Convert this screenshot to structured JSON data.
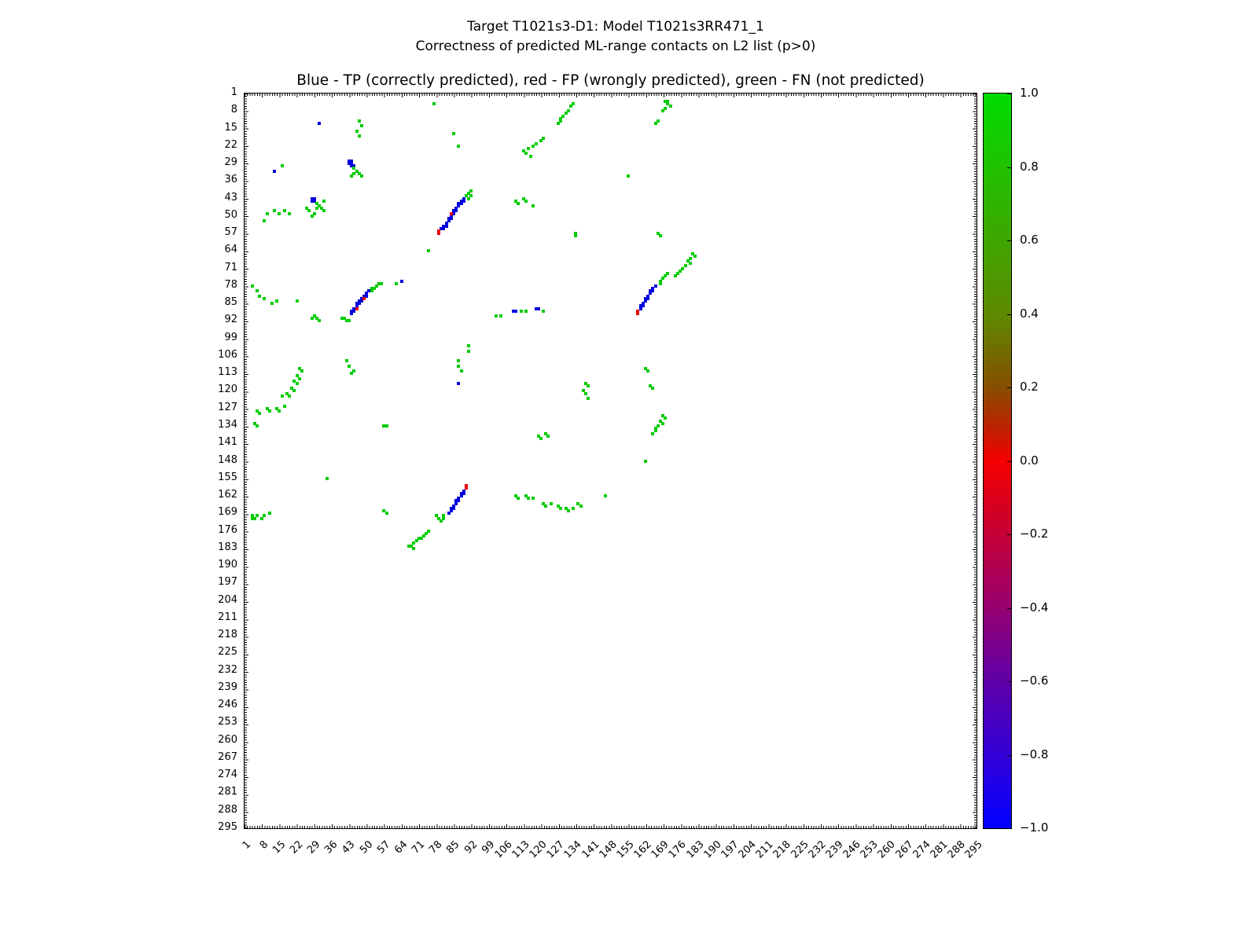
{
  "chart_data": {
    "type": "scatter",
    "title": "Target T1021s3-D1: Model T1021s3RR471_1",
    "subtitle": "Correctness of predicted ML-range contacts on L2 list (p>0)",
    "axes_title": "Blue - TP (correctly predicted), red - FP (wrongly predicted), green - FN (not predicted)",
    "xlabel": "",
    "ylabel": "",
    "xlim": [
      1,
      295
    ],
    "ylim": [
      1,
      295
    ],
    "y_inverted": true,
    "grid": false,
    "tick_values": [
      1,
      8,
      15,
      22,
      29,
      36,
      43,
      50,
      57,
      64,
      71,
      78,
      85,
      92,
      99,
      106,
      113,
      120,
      127,
      134,
      141,
      148,
      155,
      162,
      169,
      176,
      183,
      190,
      197,
      204,
      211,
      218,
      225,
      232,
      239,
      246,
      253,
      260,
      267,
      274,
      281,
      288,
      295
    ],
    "series": [
      {
        "id": "tp",
        "name": "TP (correctly predicted)",
        "color": "#0000dd",
        "points": [
          [
            31,
            13
          ],
          [
            13,
            32
          ],
          [
            43,
            28
          ],
          [
            44,
            28
          ],
          [
            43,
            29
          ],
          [
            44,
            29
          ],
          [
            44,
            30
          ],
          [
            45,
            30
          ],
          [
            45,
            31
          ],
          [
            28,
            43
          ],
          [
            29,
            43
          ],
          [
            28,
            44
          ],
          [
            29,
            44
          ],
          [
            80,
            55
          ],
          [
            81,
            55
          ],
          [
            81,
            54
          ],
          [
            82,
            54
          ],
          [
            82,
            53
          ],
          [
            83,
            52
          ],
          [
            83,
            51
          ],
          [
            84,
            51
          ],
          [
            84,
            50
          ],
          [
            85,
            49
          ],
          [
            85,
            48
          ],
          [
            86,
            48
          ],
          [
            86,
            47
          ],
          [
            87,
            46
          ],
          [
            87,
            45
          ],
          [
            88,
            45
          ],
          [
            88,
            44
          ],
          [
            89,
            44
          ],
          [
            89,
            43
          ],
          [
            44,
            89
          ],
          [
            44,
            88
          ],
          [
            45,
            88
          ],
          [
            45,
            87
          ],
          [
            46,
            86
          ],
          [
            46,
            85
          ],
          [
            47,
            85
          ],
          [
            47,
            84
          ],
          [
            48,
            84
          ],
          [
            48,
            83
          ],
          [
            49,
            82
          ],
          [
            50,
            82
          ],
          [
            50,
            81
          ],
          [
            51,
            80
          ],
          [
            64,
            76
          ],
          [
            109,
            88
          ],
          [
            110,
            88
          ],
          [
            118,
            87
          ],
          [
            119,
            87
          ],
          [
            87,
            117
          ],
          [
            160,
            87
          ],
          [
            160,
            86
          ],
          [
            161,
            86
          ],
          [
            161,
            85
          ],
          [
            162,
            84
          ],
          [
            162,
            83
          ],
          [
            163,
            83
          ],
          [
            163,
            82
          ],
          [
            164,
            81
          ],
          [
            164,
            80
          ],
          [
            165,
            80
          ],
          [
            165,
            79
          ],
          [
            166,
            78
          ],
          [
            89,
            160
          ],
          [
            89,
            161
          ],
          [
            88,
            161
          ],
          [
            88,
            162
          ],
          [
            87,
            163
          ],
          [
            87,
            164
          ],
          [
            86,
            164
          ],
          [
            86,
            165
          ],
          [
            85,
            166
          ],
          [
            85,
            167
          ],
          [
            84,
            167
          ],
          [
            84,
            168
          ],
          [
            83,
            169
          ]
        ]
      },
      {
        "id": "fp",
        "name": "FP (wrongly predicted)",
        "color": "#ee0000",
        "points": [
          [
            79,
            57
          ],
          [
            79,
            56
          ],
          [
            84,
            49
          ],
          [
            46,
            87
          ],
          [
            49,
            83
          ],
          [
            159,
            89
          ],
          [
            159,
            88
          ],
          [
            90,
            158
          ],
          [
            90,
            159
          ]
        ]
      },
      {
        "id": "fn",
        "name": "FN (not predicted)",
        "color": "#00cc00",
        "points": [
          [
            77,
            5
          ],
          [
            170,
            4
          ],
          [
            171,
            4
          ],
          [
            171,
            5
          ],
          [
            172,
            6
          ],
          [
            170,
            7
          ],
          [
            169,
            8
          ],
          [
            167,
            12
          ],
          [
            166,
            13
          ],
          [
            133,
            5
          ],
          [
            132,
            6
          ],
          [
            131,
            8
          ],
          [
            130,
            9
          ],
          [
            129,
            10
          ],
          [
            128,
            11
          ],
          [
            128,
            12
          ],
          [
            127,
            13
          ],
          [
            47,
            12
          ],
          [
            48,
            14
          ],
          [
            46,
            16
          ],
          [
            47,
            18
          ],
          [
            85,
            17
          ],
          [
            87,
            22
          ],
          [
            121,
            19
          ],
          [
            120,
            20
          ],
          [
            118,
            21
          ],
          [
            117,
            22
          ],
          [
            115,
            23
          ],
          [
            113,
            24
          ],
          [
            114,
            25
          ],
          [
            116,
            26
          ],
          [
            16,
            30
          ],
          [
            45,
            31
          ],
          [
            46,
            32
          ],
          [
            47,
            33
          ],
          [
            48,
            34
          ],
          [
            45,
            33
          ],
          [
            44,
            34
          ],
          [
            155,
            34
          ],
          [
            33,
            44
          ],
          [
            30,
            45
          ],
          [
            31,
            46
          ],
          [
            32,
            47
          ],
          [
            33,
            48
          ],
          [
            30,
            47
          ],
          [
            29,
            49
          ],
          [
            28,
            50
          ],
          [
            10,
            49
          ],
          [
            9,
            52
          ],
          [
            13,
            48
          ],
          [
            15,
            49
          ],
          [
            17,
            48
          ],
          [
            19,
            49
          ],
          [
            26,
            47
          ],
          [
            27,
            48
          ],
          [
            90,
            42
          ],
          [
            91,
            41
          ],
          [
            91,
            43
          ],
          [
            92,
            40
          ],
          [
            92,
            42
          ],
          [
            75,
            64
          ],
          [
            110,
            44
          ],
          [
            111,
            45
          ],
          [
            113,
            43
          ],
          [
            114,
            44
          ],
          [
            117,
            46
          ],
          [
            134,
            57
          ],
          [
            134,
            58
          ],
          [
            167,
            57
          ],
          [
            168,
            58
          ],
          [
            181,
            65
          ],
          [
            182,
            66
          ],
          [
            180,
            67
          ],
          [
            179,
            68
          ],
          [
            180,
            69
          ],
          [
            178,
            70
          ],
          [
            177,
            71
          ],
          [
            176,
            72
          ],
          [
            175,
            73
          ],
          [
            174,
            74
          ],
          [
            169,
            75
          ],
          [
            168,
            76
          ],
          [
            168,
            77
          ],
          [
            170,
            74
          ],
          [
            171,
            73
          ],
          [
            40,
            91
          ],
          [
            41,
            91
          ],
          [
            42,
            92
          ],
          [
            43,
            92
          ],
          [
            52,
            79
          ],
          [
            52,
            80
          ],
          [
            53,
            79
          ],
          [
            54,
            78
          ],
          [
            55,
            77
          ],
          [
            56,
            77
          ],
          [
            62,
            77
          ],
          [
            4,
            78
          ],
          [
            6,
            80
          ],
          [
            7,
            82
          ],
          [
            9,
            83
          ],
          [
            12,
            85
          ],
          [
            14,
            84
          ],
          [
            22,
            84
          ],
          [
            28,
            91
          ],
          [
            29,
            90
          ],
          [
            30,
            91
          ],
          [
            31,
            92
          ],
          [
            102,
            90
          ],
          [
            104,
            90
          ],
          [
            112,
            88
          ],
          [
            114,
            88
          ],
          [
            121,
            88
          ],
          [
            91,
            102
          ],
          [
            91,
            104
          ],
          [
            42,
            108
          ],
          [
            43,
            110
          ],
          [
            45,
            112
          ],
          [
            44,
            113
          ],
          [
            87,
            108
          ],
          [
            87,
            110
          ],
          [
            88,
            112
          ],
          [
            23,
            111
          ],
          [
            24,
            112
          ],
          [
            22,
            114
          ],
          [
            23,
            115
          ],
          [
            21,
            116
          ],
          [
            22,
            117
          ],
          [
            20,
            119
          ],
          [
            21,
            120
          ],
          [
            18,
            121
          ],
          [
            19,
            122
          ],
          [
            16,
            122
          ],
          [
            138,
            117
          ],
          [
            139,
            118
          ],
          [
            137,
            120
          ],
          [
            138,
            121
          ],
          [
            139,
            123
          ],
          [
            162,
            111
          ],
          [
            163,
            112
          ],
          [
            164,
            118
          ],
          [
            165,
            119
          ],
          [
            6,
            128
          ],
          [
            7,
            129
          ],
          [
            10,
            127
          ],
          [
            11,
            128
          ],
          [
            14,
            127
          ],
          [
            15,
            128
          ],
          [
            17,
            126
          ],
          [
            5,
            133
          ],
          [
            6,
            134
          ],
          [
            169,
            130
          ],
          [
            170,
            131
          ],
          [
            168,
            132
          ],
          [
            169,
            133
          ],
          [
            167,
            134
          ],
          [
            166,
            135
          ],
          [
            166,
            136
          ],
          [
            165,
            137
          ],
          [
            57,
            134
          ],
          [
            58,
            134
          ],
          [
            119,
            138
          ],
          [
            120,
            139
          ],
          [
            122,
            137
          ],
          [
            123,
            138
          ],
          [
            162,
            148
          ],
          [
            34,
            155
          ],
          [
            78,
            170
          ],
          [
            79,
            171
          ],
          [
            80,
            172
          ],
          [
            81,
            170
          ],
          [
            81,
            171
          ],
          [
            110,
            162
          ],
          [
            111,
            163
          ],
          [
            114,
            162
          ],
          [
            115,
            163
          ],
          [
            117,
            163
          ],
          [
            121,
            165
          ],
          [
            122,
            166
          ],
          [
            124,
            165
          ],
          [
            127,
            166
          ],
          [
            128,
            167
          ],
          [
            130,
            167
          ],
          [
            131,
            168
          ],
          [
            133,
            167
          ],
          [
            135,
            165
          ],
          [
            136,
            166
          ],
          [
            146,
            162
          ],
          [
            4,
            170
          ],
          [
            4,
            171
          ],
          [
            5,
            171
          ],
          [
            6,
            170
          ],
          [
            8,
            171
          ],
          [
            9,
            170
          ],
          [
            11,
            169
          ],
          [
            57,
            168
          ],
          [
            58,
            169
          ],
          [
            67,
            182
          ],
          [
            68,
            182
          ],
          [
            69,
            181
          ],
          [
            69,
            183
          ],
          [
            70,
            180
          ],
          [
            71,
            179
          ],
          [
            72,
            179
          ],
          [
            73,
            178
          ],
          [
            74,
            177
          ],
          [
            75,
            176
          ]
        ]
      }
    ],
    "colorbar": {
      "ticks": [
        "1.0",
        "0.8",
        "0.6",
        "0.4",
        "0.2",
        "0.0",
        "−0.2",
        "−0.4",
        "−0.6",
        "−0.8",
        "−1.0"
      ],
      "range": [
        1.0,
        -1.0
      ],
      "stops": [
        {
          "pos": 0.0,
          "color": "#00dc00"
        },
        {
          "pos": 0.15,
          "color": "#2fb400"
        },
        {
          "pos": 0.3,
          "color": "#5d8a00"
        },
        {
          "pos": 0.4,
          "color": "#874e00"
        },
        {
          "pos": 0.46,
          "color": "#c21d00"
        },
        {
          "pos": 0.5,
          "color": "#f50000"
        },
        {
          "pos": 0.56,
          "color": "#d6001e"
        },
        {
          "pos": 0.68,
          "color": "#a10064"
        },
        {
          "pos": 0.8,
          "color": "#5f00a8"
        },
        {
          "pos": 0.92,
          "color": "#2a00e0"
        },
        {
          "pos": 1.0,
          "color": "#0000ff"
        }
      ]
    }
  }
}
